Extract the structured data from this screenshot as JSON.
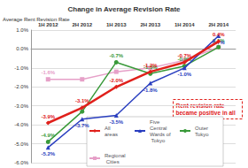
{
  "chart_data": {
    "type": "line",
    "title": "Change in Average Revision Rate",
    "y_label": "Average Rent Revision Rate",
    "categories": [
      "1H 2012",
      "2H 2012",
      "1H 2013",
      "2H 2013",
      "1H 2014",
      "2H 2014"
    ],
    "series": [
      {
        "name": "All areas",
        "color": "#e0201b",
        "marker": "diamond",
        "values": [
          -3.9,
          -3.1,
          -2.0,
          -1.2,
          -0.7,
          0.4
        ],
        "value_labels": [
          "-3.9%",
          "-3.1%",
          "-2.0%",
          "-1.2%",
          "-0.7%",
          "0.4%"
        ]
      },
      {
        "name": "Five Central Wards of Tokyo",
        "color": "#2a3fc0",
        "marker": "triangle",
        "values": [
          -5.2,
          -3.7,
          -3.5,
          -1.8,
          -1.0,
          0.7
        ],
        "value_labels": [
          "-5.2%",
          "-3.7%",
          "-3.5%",
          "-1.8%",
          "-1.0%",
          "0.7%"
        ]
      },
      {
        "name": "Outer Tokyo",
        "color": "#3a9a3a",
        "marker": "circle",
        "values": [
          -4.9,
          -3.3,
          -0.7,
          -1.3,
          -0.9,
          0.1
        ],
        "value_labels": [
          "-4.9%",
          null,
          "-0.7%",
          "-1.3%",
          "-0.9%",
          "0.1%"
        ]
      },
      {
        "name": "Regional Cities",
        "color": "#e6a0c8",
        "marker": "rect",
        "values": [
          -1.6,
          -1.6,
          -1.2,
          -1.0,
          -0.6,
          0.1
        ],
        "value_labels": [
          "-1.6%",
          null,
          null,
          null,
          null,
          null
        ]
      }
    ],
    "ylim": [
      -6,
      1
    ],
    "yticks": [
      {
        "value": -6,
        "label": "-6.0%"
      },
      {
        "value": -5,
        "label": "-5.0%"
      },
      {
        "value": -4,
        "label": "-4.0%"
      },
      {
        "value": -3,
        "label": "-3.0%"
      },
      {
        "value": -2,
        "label": "-2.0%"
      },
      {
        "value": -1,
        "label": "-1.0%"
      },
      {
        "value": 0,
        "label": "0.0%"
      },
      {
        "value": 1,
        "label": "1.0%"
      }
    ],
    "annotations": [
      {
        "text": "Rent revision rate became positive in all areas"
      }
    ],
    "grid": true,
    "legend": "bottom",
    "data_labels": true
  }
}
